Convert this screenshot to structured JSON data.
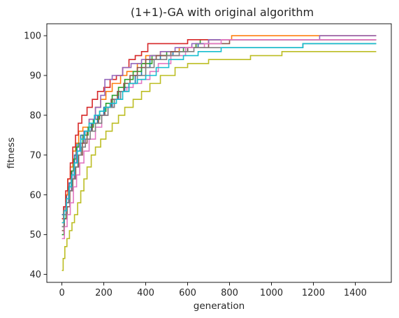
{
  "chart_data": {
    "type": "line",
    "title": "(1+1)-GA with original algorithm",
    "xlabel": "generation",
    "ylabel": "fitness",
    "xlim": [
      -72,
      1572
    ],
    "ylim": [
      38,
      103
    ],
    "xticks": [
      0,
      200,
      400,
      600,
      800,
      1000,
      1200,
      1400
    ],
    "yticks": [
      40,
      50,
      60,
      70,
      80,
      90,
      100
    ],
    "grid": false,
    "legend": "none",
    "series": [
      {
        "color": "#1f77b4",
        "points": [
          [
            0,
            55
          ],
          [
            10,
            57
          ],
          [
            22,
            60
          ],
          [
            35,
            63
          ],
          [
            48,
            66
          ],
          [
            60,
            70
          ],
          [
            72,
            73
          ],
          [
            90,
            75
          ],
          [
            110,
            76
          ],
          [
            140,
            78
          ],
          [
            170,
            80
          ],
          [
            200,
            82
          ],
          [
            240,
            84
          ],
          [
            270,
            86
          ],
          [
            300,
            87
          ],
          [
            320,
            88
          ],
          [
            350,
            90
          ],
          [
            380,
            92
          ],
          [
            420,
            94
          ],
          [
            470,
            95
          ],
          [
            530,
            96
          ],
          [
            600,
            97
          ],
          [
            650,
            98
          ],
          [
            700,
            99
          ],
          [
            1500,
            99
          ]
        ]
      },
      {
        "color": "#ff7f0e",
        "points": [
          [
            0,
            53
          ],
          [
            8,
            56
          ],
          [
            18,
            60
          ],
          [
            28,
            64
          ],
          [
            40,
            67
          ],
          [
            52,
            71
          ],
          [
            65,
            73
          ],
          [
            80,
            76
          ],
          [
            100,
            77
          ],
          [
            130,
            79
          ],
          [
            160,
            82
          ],
          [
            185,
            84
          ],
          [
            210,
            86
          ],
          [
            240,
            88
          ],
          [
            280,
            90
          ],
          [
            310,
            91
          ],
          [
            360,
            93
          ],
          [
            400,
            95
          ],
          [
            470,
            96
          ],
          [
            560,
            97
          ],
          [
            640,
            98
          ],
          [
            700,
            99
          ],
          [
            810,
            100
          ],
          [
            1500,
            100
          ]
        ]
      },
      {
        "color": "#2ca02c",
        "points": [
          [
            0,
            50
          ],
          [
            10,
            54
          ],
          [
            20,
            58
          ],
          [
            32,
            62
          ],
          [
            44,
            66
          ],
          [
            55,
            69
          ],
          [
            68,
            72
          ],
          [
            80,
            73
          ],
          [
            100,
            75
          ],
          [
            125,
            77
          ],
          [
            150,
            79
          ],
          [
            180,
            81
          ],
          [
            210,
            83
          ],
          [
            240,
            85
          ],
          [
            270,
            87
          ],
          [
            300,
            89
          ],
          [
            340,
            91
          ],
          [
            380,
            93
          ],
          [
            430,
            95
          ],
          [
            500,
            96
          ],
          [
            580,
            97
          ],
          [
            640,
            98
          ],
          [
            660,
            99
          ],
          [
            1500,
            99
          ]
        ]
      },
      {
        "color": "#d62728",
        "points": [
          [
            0,
            54
          ],
          [
            8,
            57
          ],
          [
            18,
            61
          ],
          [
            28,
            64
          ],
          [
            40,
            68
          ],
          [
            52,
            72
          ],
          [
            65,
            75
          ],
          [
            78,
            78
          ],
          [
            95,
            80
          ],
          [
            120,
            82
          ],
          [
            145,
            84
          ],
          [
            170,
            86
          ],
          [
            200,
            87
          ],
          [
            230,
            89
          ],
          [
            260,
            90
          ],
          [
            290,
            92
          ],
          [
            320,
            94
          ],
          [
            350,
            95
          ],
          [
            380,
            96
          ],
          [
            410,
            98
          ],
          [
            600,
            99
          ],
          [
            810,
            99
          ],
          [
            1200,
            99
          ],
          [
            1500,
            99
          ]
        ]
      },
      {
        "color": "#9467bd",
        "points": [
          [
            0,
            52
          ],
          [
            10,
            55
          ],
          [
            20,
            58
          ],
          [
            32,
            61
          ],
          [
            45,
            64
          ],
          [
            58,
            68
          ],
          [
            70,
            71
          ],
          [
            85,
            73
          ],
          [
            105,
            76
          ],
          [
            130,
            79
          ],
          [
            160,
            82
          ],
          [
            185,
            85
          ],
          [
            205,
            89
          ],
          [
            240,
            90
          ],
          [
            290,
            92
          ],
          [
            330,
            93
          ],
          [
            380,
            94
          ],
          [
            420,
            95
          ],
          [
            470,
            96
          ],
          [
            540,
            97
          ],
          [
            620,
            98
          ],
          [
            700,
            99
          ],
          [
            1230,
            100
          ],
          [
            1500,
            100
          ]
        ]
      },
      {
        "color": "#8c564b",
        "points": [
          [
            0,
            51
          ],
          [
            12,
            54
          ],
          [
            25,
            57
          ],
          [
            38,
            61
          ],
          [
            52,
            64
          ],
          [
            66,
            67
          ],
          [
            80,
            70
          ],
          [
            98,
            73
          ],
          [
            120,
            76
          ],
          [
            145,
            78
          ],
          [
            175,
            80
          ],
          [
            205,
            82
          ],
          [
            235,
            84
          ],
          [
            265,
            86
          ],
          [
            295,
            88
          ],
          [
            325,
            90
          ],
          [
            360,
            92
          ],
          [
            400,
            94
          ],
          [
            450,
            95
          ],
          [
            520,
            96
          ],
          [
            600,
            97
          ],
          [
            700,
            98
          ],
          [
            800,
            99
          ],
          [
            1500,
            99
          ]
        ]
      },
      {
        "color": "#e377c2",
        "points": [
          [
            0,
            49
          ],
          [
            12,
            52
          ],
          [
            25,
            55
          ],
          [
            40,
            58
          ],
          [
            55,
            62
          ],
          [
            70,
            65
          ],
          [
            85,
            68
          ],
          [
            105,
            71
          ],
          [
            130,
            74
          ],
          [
            160,
            77
          ],
          [
            190,
            80
          ],
          [
            220,
            82
          ],
          [
            250,
            84
          ],
          [
            280,
            86
          ],
          [
            310,
            87
          ],
          [
            340,
            88
          ],
          [
            380,
            89
          ],
          [
            420,
            91
          ],
          [
            460,
            93
          ],
          [
            520,
            95
          ],
          [
            590,
            97
          ],
          [
            680,
            98
          ],
          [
            760,
            99
          ],
          [
            1500,
            99
          ]
        ]
      },
      {
        "color": "#7f7f7f",
        "points": [
          [
            0,
            52
          ],
          [
            10,
            55
          ],
          [
            22,
            58
          ],
          [
            35,
            61
          ],
          [
            48,
            64
          ],
          [
            62,
            67
          ],
          [
            76,
            70
          ],
          [
            92,
            72
          ],
          [
            112,
            74
          ],
          [
            135,
            76
          ],
          [
            160,
            78
          ],
          [
            190,
            80
          ],
          [
            220,
            82
          ],
          [
            250,
            84
          ],
          [
            280,
            86
          ],
          [
            320,
            88
          ],
          [
            360,
            90
          ],
          [
            400,
            92
          ],
          [
            440,
            94
          ],
          [
            500,
            95
          ],
          [
            560,
            96
          ],
          [
            630,
            97
          ],
          [
            1150,
            98
          ],
          [
            1500,
            98
          ]
        ]
      },
      {
        "color": "#bcbd22",
        "points": [
          [
            0,
            41
          ],
          [
            6,
            44
          ],
          [
            14,
            47
          ],
          [
            24,
            49
          ],
          [
            36,
            51
          ],
          [
            48,
            53
          ],
          [
            60,
            55
          ],
          [
            75,
            58
          ],
          [
            90,
            61
          ],
          [
            105,
            64
          ],
          [
            120,
            67
          ],
          [
            140,
            70
          ],
          [
            160,
            72
          ],
          [
            185,
            74
          ],
          [
            210,
            76
          ],
          [
            240,
            78
          ],
          [
            270,
            80
          ],
          [
            300,
            82
          ],
          [
            340,
            84
          ],
          [
            380,
            86
          ],
          [
            420,
            88
          ],
          [
            470,
            90
          ],
          [
            540,
            92
          ],
          [
            600,
            93
          ],
          [
            700,
            94
          ],
          [
            900,
            95
          ],
          [
            1050,
            96
          ],
          [
            1500,
            96
          ]
        ]
      },
      {
        "color": "#17becf",
        "points": [
          [
            0,
            53
          ],
          [
            10,
            56
          ],
          [
            22,
            59
          ],
          [
            34,
            62
          ],
          [
            46,
            65
          ],
          [
            60,
            68
          ],
          [
            74,
            71
          ],
          [
            90,
            74
          ],
          [
            108,
            76
          ],
          [
            130,
            78
          ],
          [
            155,
            80
          ],
          [
            180,
            81
          ],
          [
            205,
            82
          ],
          [
            230,
            83
          ],
          [
            260,
            84
          ],
          [
            290,
            86
          ],
          [
            320,
            88
          ],
          [
            360,
            89
          ],
          [
            400,
            90
          ],
          [
            450,
            92
          ],
          [
            510,
            94
          ],
          [
            580,
            95
          ],
          [
            650,
            96
          ],
          [
            760,
            97
          ],
          [
            880,
            97
          ],
          [
            1150,
            98
          ],
          [
            1500,
            98
          ]
        ]
      }
    ]
  }
}
